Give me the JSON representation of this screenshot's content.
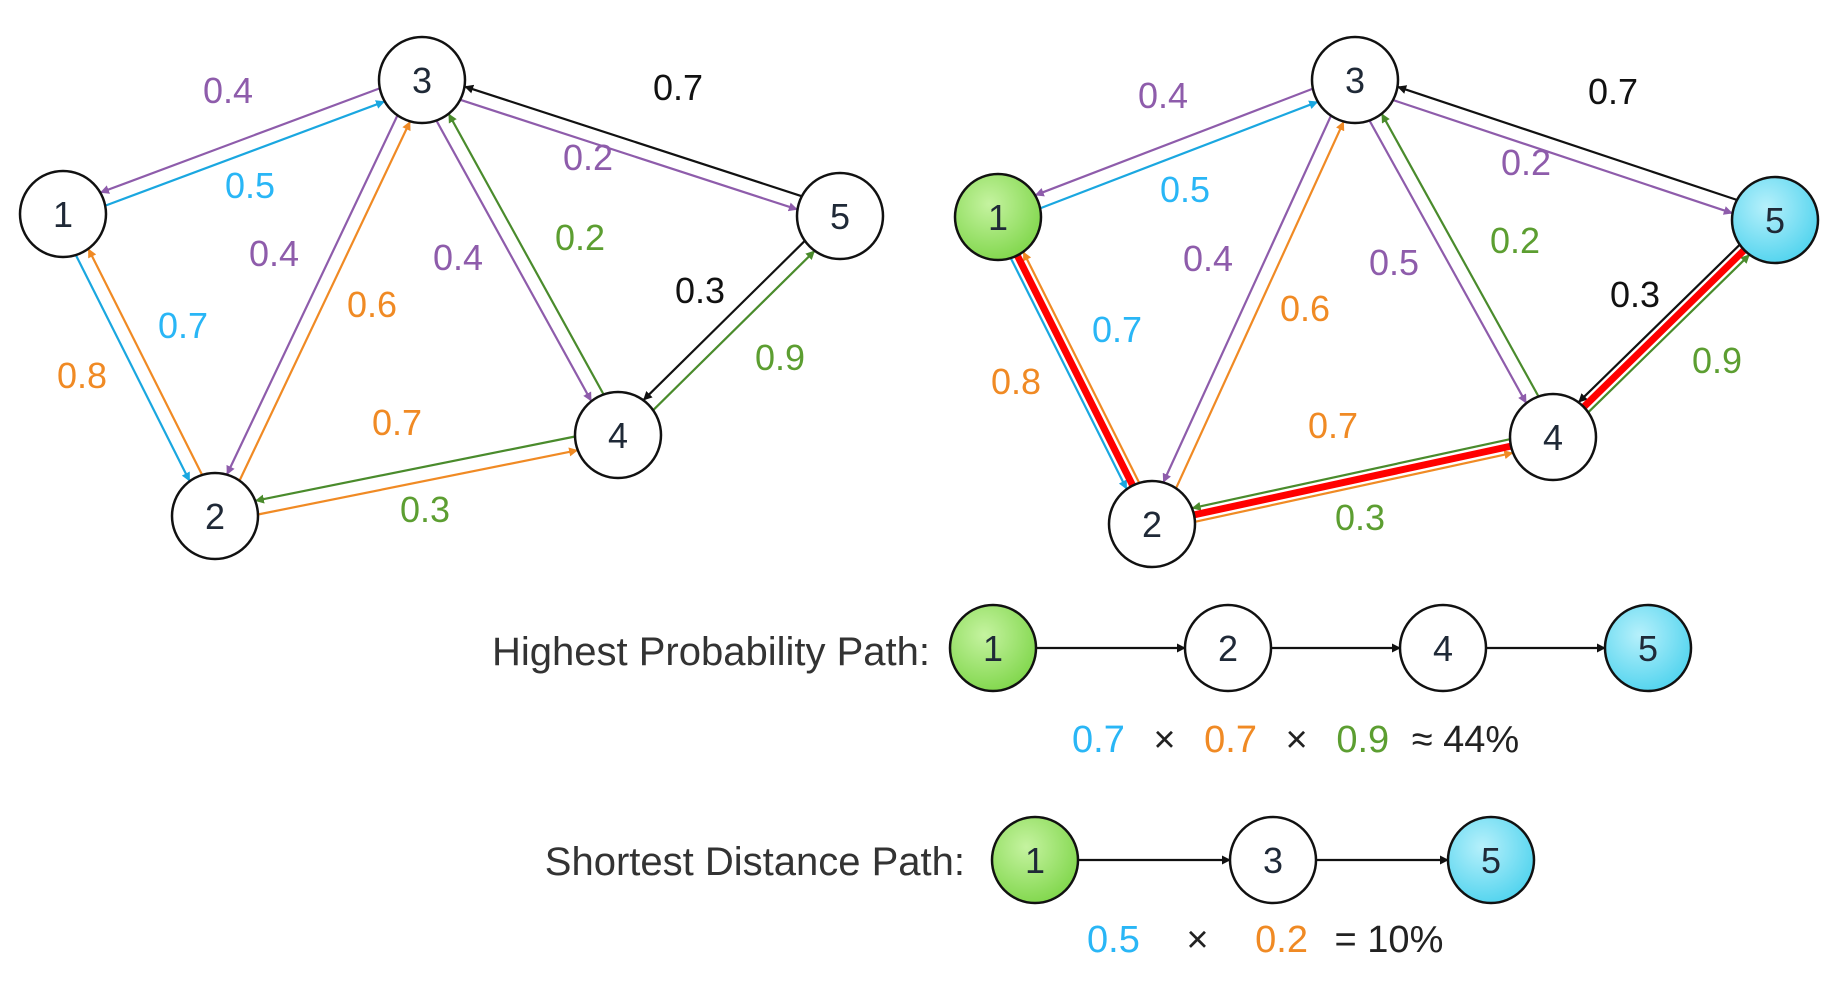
{
  "colors": {
    "cyan": "#1aa7e0",
    "cyan_text": "#29b6f6",
    "purple": "#8e5cab",
    "orange": "#f08a24",
    "green": "#4a8b2c",
    "green_text": "#5c9e31",
    "black": "#111111",
    "red": "#ff0000",
    "node_start_fill": "#7fd64a",
    "node_end_fill": "#4fd3ee"
  },
  "nodes": [
    "1",
    "2",
    "3",
    "4",
    "5"
  ],
  "graph_edges": [
    {
      "from": "1",
      "to": "3",
      "prob": "0.5",
      "color": "cyan"
    },
    {
      "from": "3",
      "to": "1",
      "prob": "0.4",
      "color": "purple"
    },
    {
      "from": "1",
      "to": "2",
      "prob": "0.7",
      "color": "cyan"
    },
    {
      "from": "2",
      "to": "1",
      "prob": "0.8",
      "color": "orange"
    },
    {
      "from": "3",
      "to": "2",
      "prob": "0.4",
      "color": "purple"
    },
    {
      "from": "2",
      "to": "3",
      "prob": "0.6",
      "color": "orange"
    },
    {
      "from": "2",
      "to": "4",
      "prob": "0.7",
      "color": "orange"
    },
    {
      "from": "4",
      "to": "2",
      "prob": "0.3",
      "color": "green"
    },
    {
      "from": "4",
      "to": "3",
      "prob": "0.2",
      "color": "green"
    },
    {
      "from": "3",
      "to": "5",
      "prob": "0.2",
      "color": "purple"
    },
    {
      "from": "5",
      "to": "3",
      "prob": "0.7",
      "color": "black"
    },
    {
      "from": "5",
      "to": "4",
      "prob": "0.3",
      "color": "black"
    },
    {
      "from": "4",
      "to": "5",
      "prob": "0.9",
      "color": "green"
    }
  ],
  "left_graph": {
    "edge_3_to_4_prob": "0.4"
  },
  "right_graph": {
    "edge_3_to_4_prob": "0.5",
    "start_node": "1",
    "end_node": "5",
    "highlighted_path": [
      "1",
      "2",
      "4",
      "5"
    ]
  },
  "highest_path": {
    "label": "Highest Probability Path:",
    "nodes": [
      "1",
      "2",
      "4",
      "5"
    ],
    "formula": {
      "f1": "0.7",
      "x1": "×",
      "f2": "0.7",
      "x2": "×",
      "f3": "0.9",
      "result": "≈ 44%"
    }
  },
  "shortest_path": {
    "label": "Shortest Distance Path:",
    "nodes": [
      "1",
      "3",
      "5"
    ],
    "formula": {
      "f1": "0.5",
      "x1": "×",
      "f2": "0.2",
      "result": "= 10%"
    }
  }
}
